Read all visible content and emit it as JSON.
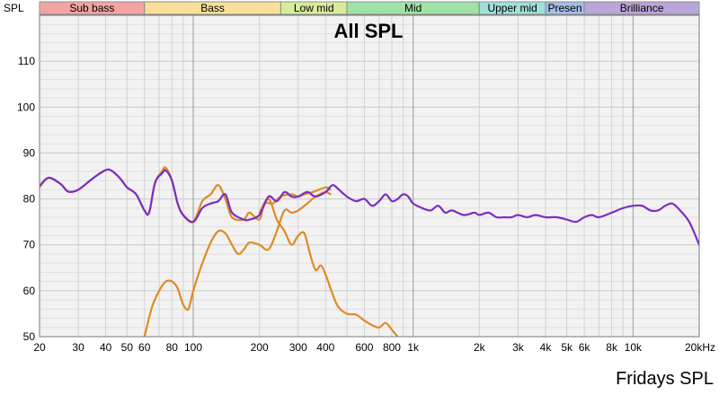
{
  "chart_data": {
    "type": "line",
    "title": "All SPL",
    "caption": "Fridays SPL",
    "ylabel": "SPL",
    "x_scale": "log",
    "xlim": [
      20,
      20000
    ],
    "ylim": [
      50,
      120
    ],
    "grid": true,
    "y_ticks": [
      {
        "value": 60,
        "label": "60"
      },
      {
        "value": 70,
        "label": "70"
      },
      {
        "value": 80,
        "label": "80"
      },
      {
        "value": 90,
        "label": "90"
      },
      {
        "value": 100,
        "label": "100"
      },
      {
        "value": 110,
        "label": "110"
      }
    ],
    "y_tick_top_label": "SPL",
    "x_ticks": [
      {
        "value": 20,
        "label": "20"
      },
      {
        "value": 30,
        "label": "30"
      },
      {
        "value": 40,
        "label": "40"
      },
      {
        "value": 50,
        "label": "50"
      },
      {
        "value": 60,
        "label": "60"
      },
      {
        "value": 80,
        "label": "80"
      },
      {
        "value": 100,
        "label": "100"
      },
      {
        "value": 200,
        "label": "200"
      },
      {
        "value": 300,
        "label": "300"
      },
      {
        "value": 400,
        "label": "400"
      },
      {
        "value": 600,
        "label": "600"
      },
      {
        "value": 800,
        "label": "800"
      },
      {
        "value": 1000,
        "label": "1k"
      },
      {
        "value": 2000,
        "label": "2k"
      },
      {
        "value": 3000,
        "label": "3k"
      },
      {
        "value": 4000,
        "label": "4k"
      },
      {
        "value": 5000,
        "label": "5k"
      },
      {
        "value": 6000,
        "label": "6k"
      },
      {
        "value": 8000,
        "label": "8k"
      },
      {
        "value": 10000,
        "label": "10k"
      },
      {
        "value": 20000,
        "label": "20kHz"
      }
    ],
    "y_bottom_label": "50",
    "bands": [
      {
        "name": "Sub bass",
        "from": 20,
        "to": 60,
        "color": "#f4a3a3"
      },
      {
        "name": "Bass",
        "from": 60,
        "to": 250,
        "color": "#f9df9a"
      },
      {
        "name": "Low mid",
        "from": 250,
        "to": 500,
        "color": "#d6ec9c"
      },
      {
        "name": "Mid",
        "from": 500,
        "to": 2000,
        "color": "#9fe3a6"
      },
      {
        "name": "Upper mid",
        "from": 2000,
        "to": 4000,
        "color": "#9fe0d9"
      },
      {
        "name": "Presen",
        "from": 4000,
        "to": 6000,
        "color": "#a4bde8"
      },
      {
        "name": "Brilliance",
        "from": 6000,
        "to": 20000,
        "color": "#b9a6d8"
      }
    ],
    "colors": {
      "band_border": "#8c8c8c",
      "plot_background": "#f2f2f2",
      "grid": "#d2d2d2",
      "decade_grid": "#9a9a9a",
      "frame": "#777777"
    },
    "series": [
      {
        "color": "#e08a24",
        "points": [
          [
            20,
            82.6
          ],
          [
            22,
            84.6
          ],
          [
            25,
            83.2
          ],
          [
            27,
            81.6
          ],
          [
            30,
            82.0
          ],
          [
            35,
            84.5
          ],
          [
            40,
            86.3
          ],
          [
            43,
            86.0
          ],
          [
            47,
            84.2
          ],
          [
            50,
            82.5
          ],
          [
            55,
            81.0
          ],
          [
            60,
            77.5
          ],
          [
            63,
            77.0
          ],
          [
            67,
            83.5
          ],
          [
            72,
            86.0
          ],
          [
            75,
            86.8
          ],
          [
            80,
            84.0
          ],
          [
            85,
            79.0
          ],
          [
            90,
            76.5
          ],
          [
            100,
            75.0
          ],
          [
            110,
            79.5
          ],
          [
            120,
            81.0
          ],
          [
            130,
            83.0
          ],
          [
            140,
            80.0
          ],
          [
            150,
            76.0
          ],
          [
            170,
            75.5
          ],
          [
            180,
            77.0
          ],
          [
            200,
            75.5
          ],
          [
            210,
            79.0
          ],
          [
            230,
            79.0
          ],
          [
            250,
            80.5
          ],
          [
            280,
            81.0
          ],
          [
            300,
            80.5
          ],
          [
            320,
            81.0
          ],
          [
            350,
            81.5
          ],
          [
            400,
            82.5
          ],
          [
            420,
            82.0
          ]
        ]
      },
      {
        "color": "#e08a24",
        "points": [
          [
            60,
            50.0
          ],
          [
            65,
            56.5
          ],
          [
            70,
            60.0
          ],
          [
            75,
            62.0
          ],
          [
            80,
            62.0
          ],
          [
            85,
            60.5
          ],
          [
            90,
            57.0
          ],
          [
            95,
            56.0
          ],
          [
            100,
            60.0
          ],
          [
            110,
            66.0
          ],
          [
            120,
            70.5
          ],
          [
            130,
            73.0
          ],
          [
            140,
            72.5
          ],
          [
            150,
            70.0
          ],
          [
            160,
            68.0
          ],
          [
            170,
            69.0
          ],
          [
            180,
            70.5
          ],
          [
            200,
            70.0
          ],
          [
            220,
            69.0
          ],
          [
            240,
            73.0
          ],
          [
            260,
            77.5
          ],
          [
            280,
            77.0
          ],
          [
            300,
            77.5
          ],
          [
            330,
            79.0
          ],
          [
            360,
            80.5
          ],
          [
            400,
            81.5
          ],
          [
            420,
            81.0
          ]
        ]
      },
      {
        "color": "#e08a24",
        "points": [
          [
            200,
            77.0
          ],
          [
            220,
            80.0
          ],
          [
            240,
            75.5
          ],
          [
            260,
            73.0
          ],
          [
            280,
            70.0
          ],
          [
            300,
            72.0
          ],
          [
            320,
            72.5
          ],
          [
            340,
            68.0
          ],
          [
            360,
            64.5
          ],
          [
            380,
            65.5
          ],
          [
            400,
            63.5
          ],
          [
            450,
            57.0
          ],
          [
            500,
            55.0
          ],
          [
            550,
            54.8
          ],
          [
            600,
            53.5
          ],
          [
            650,
            52.5
          ],
          [
            700,
            52.0
          ],
          [
            750,
            53.0
          ],
          [
            800,
            51.5
          ],
          [
            850,
            50.0
          ]
        ]
      },
      {
        "color": "#7a2fc2",
        "points": [
          [
            20,
            82.8
          ],
          [
            22,
            84.6
          ],
          [
            25,
            83.2
          ],
          [
            27,
            81.6
          ],
          [
            30,
            82.0
          ],
          [
            35,
            84.5
          ],
          [
            40,
            86.3
          ],
          [
            43,
            86.0
          ],
          [
            47,
            84.2
          ],
          [
            50,
            82.5
          ],
          [
            55,
            81.0
          ],
          [
            60,
            77.5
          ],
          [
            63,
            77.0
          ],
          [
            67,
            83.5
          ],
          [
            72,
            85.5
          ],
          [
            75,
            86.2
          ],
          [
            80,
            84.0
          ],
          [
            85,
            79.0
          ],
          [
            90,
            76.5
          ],
          [
            100,
            75.0
          ],
          [
            110,
            78.0
          ],
          [
            120,
            79.0
          ],
          [
            130,
            79.5
          ],
          [
            140,
            81.0
          ],
          [
            150,
            77.0
          ],
          [
            170,
            75.5
          ],
          [
            180,
            75.5
          ],
          [
            200,
            76.5
          ],
          [
            220,
            80.5
          ],
          [
            240,
            79.5
          ],
          [
            260,
            81.5
          ],
          [
            280,
            80.5
          ],
          [
            300,
            80.5
          ],
          [
            330,
            81.5
          ],
          [
            360,
            80.5
          ],
          [
            400,
            81.5
          ],
          [
            430,
            83.0
          ],
          [
            460,
            82.0
          ],
          [
            500,
            80.5
          ],
          [
            550,
            79.5
          ],
          [
            600,
            80.0
          ],
          [
            650,
            78.5
          ],
          [
            700,
            79.5
          ],
          [
            750,
            81.0
          ],
          [
            800,
            79.5
          ],
          [
            850,
            80.0
          ],
          [
            900,
            81.0
          ],
          [
            950,
            80.5
          ],
          [
            1000,
            79.0
          ],
          [
            1100,
            78.0
          ],
          [
            1200,
            77.5
          ],
          [
            1300,
            78.5
          ],
          [
            1400,
            77.0
          ],
          [
            1500,
            77.5
          ],
          [
            1700,
            76.5
          ],
          [
            1900,
            77.0
          ],
          [
            2000,
            76.5
          ],
          [
            2200,
            77.0
          ],
          [
            2400,
            76.0
          ],
          [
            2600,
            76.0
          ],
          [
            2800,
            76.0
          ],
          [
            3000,
            76.5
          ],
          [
            3300,
            76.0
          ],
          [
            3600,
            76.5
          ],
          [
            4000,
            76.0
          ],
          [
            4500,
            76.0
          ],
          [
            5000,
            75.5
          ],
          [
            5500,
            75.0
          ],
          [
            6000,
            76.0
          ],
          [
            6500,
            76.5
          ],
          [
            7000,
            76.0
          ],
          [
            8000,
            77.0
          ],
          [
            9000,
            78.0
          ],
          [
            10000,
            78.5
          ],
          [
            11000,
            78.5
          ],
          [
            12000,
            77.5
          ],
          [
            13000,
            77.5
          ],
          [
            14000,
            78.5
          ],
          [
            15000,
            79.0
          ],
          [
            16000,
            78.0
          ],
          [
            18000,
            75.0
          ],
          [
            20000,
            70.0
          ]
        ]
      }
    ]
  }
}
